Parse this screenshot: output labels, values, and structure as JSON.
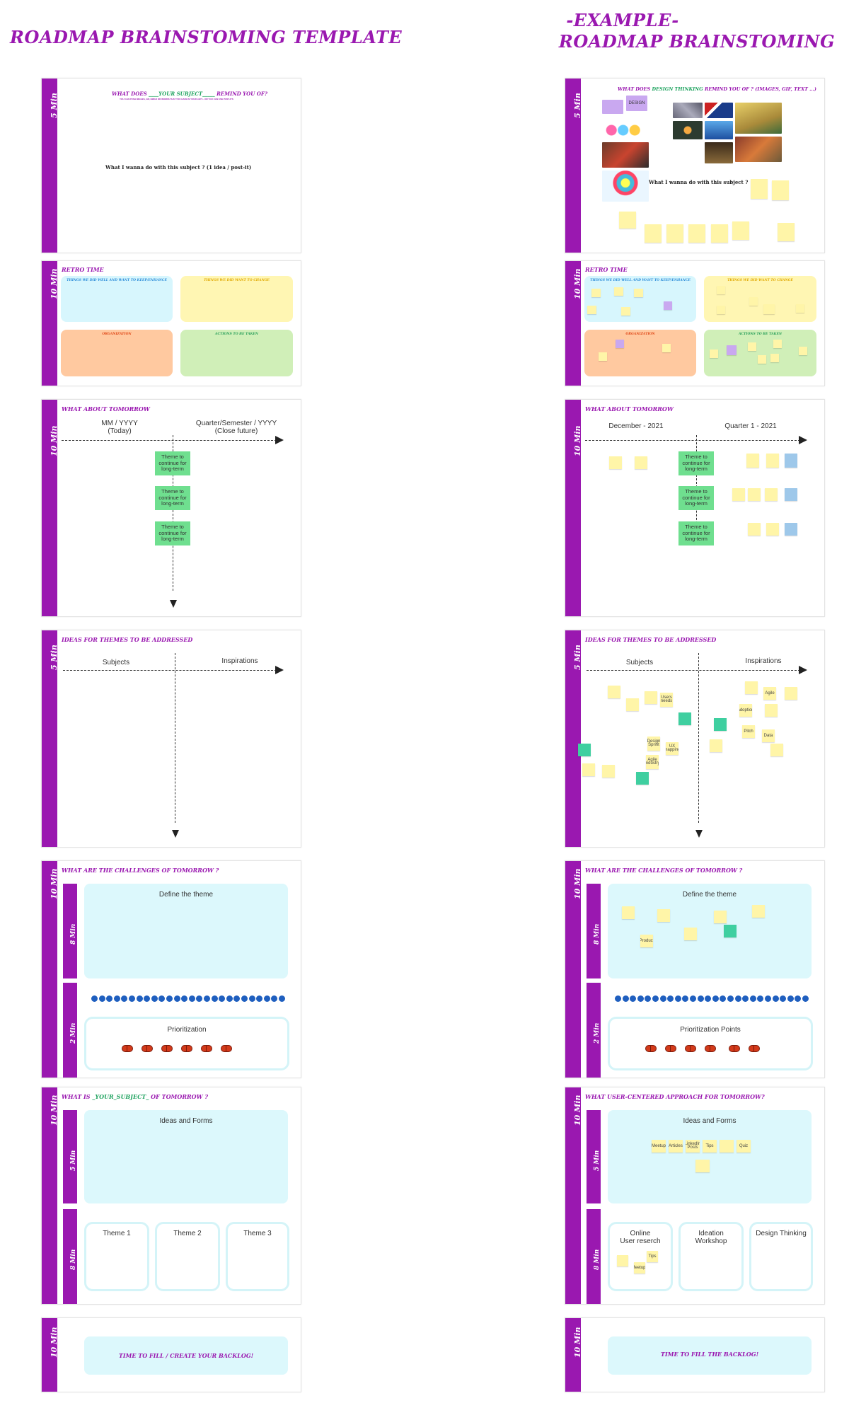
{
  "left_title": "ROADMAP BRAINSTOMING TEMPLATE",
  "right_title_line1": "-EXAMPLE-",
  "right_title_line2": "ROADMAP BRAINSTOMING",
  "durations": {
    "d5": "5 Min",
    "d10": "10 Min",
    "d8": "8 Min",
    "d2": "2 Min"
  },
  "template": {
    "s1": {
      "title_pre": "WHAT DOES",
      "title_mid": "____YOUR SUBJECT_____",
      "title_post": "REMIND YOU OF?",
      "hint": "YOU CAN PUSH IMAGES, GIF, EMOJI OR WORDS THAT YOU HAVE IN YOUR LEFT... OR YOU CAN USE POST-ITS",
      "question": "What I wanna do with this subject ?  (1 idea / post-it)"
    },
    "s2": {
      "title": "RETRO TIME",
      "q1": "THINGS WE DID WELL AND WANT TO KEEP/ENHANCE",
      "q2": "THINGS WE DID WANT TO CHANGE",
      "q3": "ORGANIZATION",
      "q4": "ACTIONS TO BE TAKEN"
    },
    "s3": {
      "title": "WHAT ABOUT TOMORROW",
      "left_l1": "MM / YYYY",
      "left_l2": "(Today)",
      "right_l1": "Quarter/Semester / YYYY",
      "right_l2": "(Close future)",
      "note": "Theme to continue for long-term"
    },
    "s4": {
      "title": "IDEAS FOR THEMES TO BE ADDRESSED",
      "left": "Subjects",
      "right": "Inspirations"
    },
    "s5": {
      "title": "WHAT ARE THE CHALLENGES OF TOMORROW ?",
      "define": "Define the theme",
      "prio": "Prioritization"
    },
    "s6": {
      "title_pre": "WHAT IS ",
      "title_mid": "_YOUR_SUBJECT_",
      "title_post": " OF TOMORROW ?",
      "ideas": "Ideas and Forms",
      "t1": "Theme 1",
      "t2": "Theme 2",
      "t3": "Theme 3"
    },
    "s7": {
      "text": "TIME TO FILL / CREATE YOUR BACKLOG!"
    }
  },
  "example": {
    "s1": {
      "title_pre": "WHAT DOES",
      "title_mid": "DESIGN THINKING",
      "title_post": "REMIND YOU OF ? (IMAGES, GIF, TEXT ...)",
      "design_tag": "DESIGN",
      "question": "What I wanna do with this subject ?"
    },
    "s3": {
      "left": "December - 2021",
      "right": "Quarter 1 - 2021"
    },
    "s5": {
      "prio": "Prioritization Points"
    },
    "s6": {
      "title": "WHAT USER-CENTERED APPROACH FOR TOMORROW?",
      "c1": "Online\nUser reserch",
      "c2": "Ideation\nWorkshop",
      "c3": "Design Thinking"
    },
    "s7": {
      "text": "TIME TO FILL THE BACKLOG!"
    },
    "stickies": {
      "agile": "Agile",
      "pitch": "Pitch",
      "data": "Data",
      "tips": "Tips",
      "quiz": "Quiz",
      "tips2": "Tips",
      "product": "Product",
      "meetup": "Meetup",
      "design_sprint": "Design Sprint",
      "ux_mapping": "UX mapping",
      "agile_industry": "Agile industry",
      "users_needs": "Users needs",
      "linkedin": "LinkedIn Posts",
      "adoption": "adoption",
      "meetups": "Meetups",
      "articles": "Articles"
    }
  }
}
